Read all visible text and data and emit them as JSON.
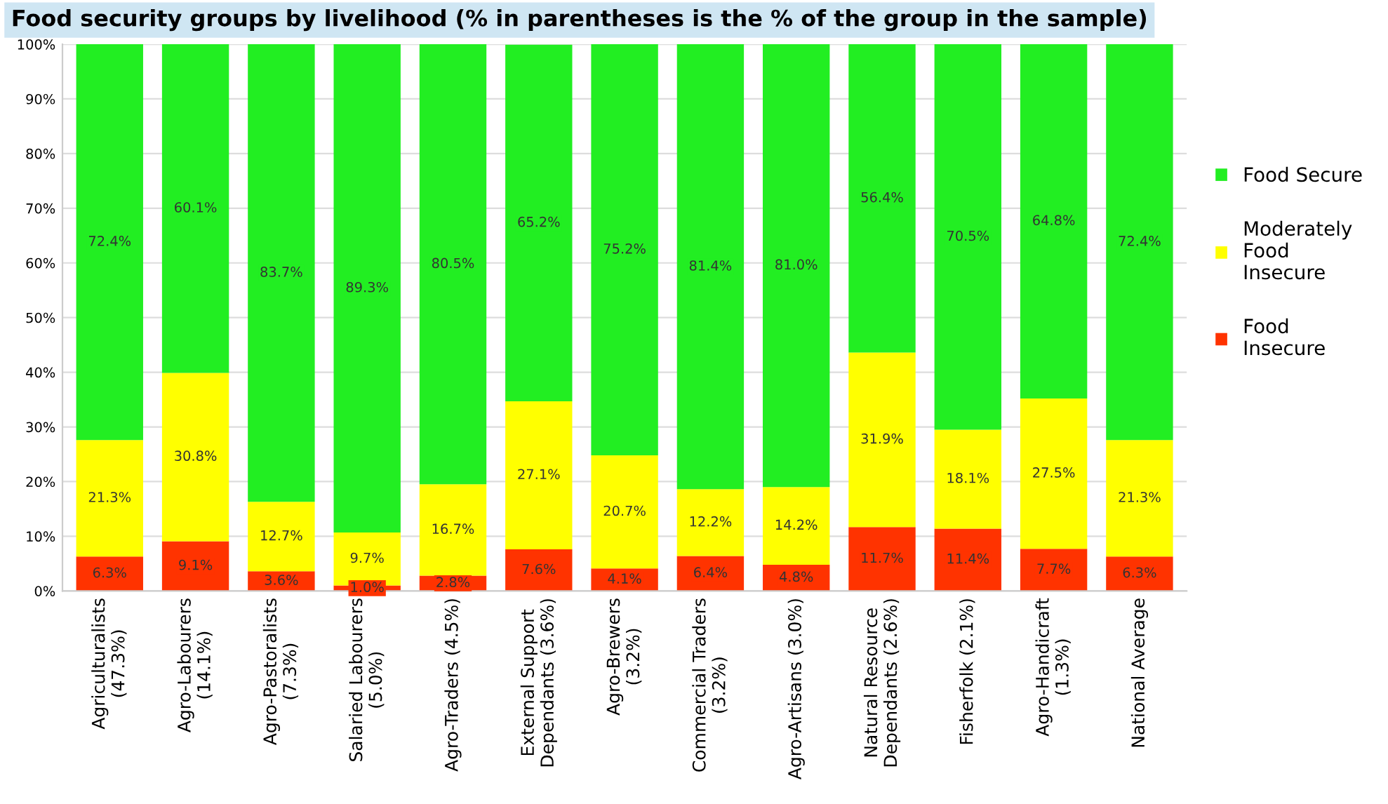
{
  "chart_data": {
    "type": "bar",
    "title": "Food security groups by livelihood (% in parentheses is the % of the group in the sample)",
    "categories": [
      "Agriculturalists\n(47.3%)",
      "Agro-Labourers\n(14.1%)",
      "Agro-Pastoralists\n(7.3%)",
      "Salaried Labourers\n(5.0%)",
      "Agro-Traders (4.5%)",
      "External Support\nDependants (3.6%)",
      "Agro-Brewers\n(3.2%)",
      "Commercial Traders\n(3.2%)",
      "Agro-Artisans (3.0%)",
      "Natural Resource\nDependants (2.6%)",
      "Fisherfolk (2.1%)",
      "Agro-Handicraft\n(1.3%)",
      "National Average"
    ],
    "stacked": true,
    "series": [
      {
        "name": "Food Insecure",
        "color": "#ff3300",
        "values": [
          6.3,
          9.1,
          3.6,
          1.0,
          2.8,
          7.6,
          4.1,
          6.4,
          4.8,
          11.7,
          11.4,
          7.7,
          6.3
        ],
        "value_labels": [
          "6.3%",
          "9.1%",
          "3.6%",
          "1.0%",
          "2.8%",
          "7.6%",
          "4.1%",
          "6.4%",
          "4.8%",
          "11.7%",
          "11.4%",
          "7.7%",
          "6.3%"
        ]
      },
      {
        "name": "Moderately Food Insecure",
        "color": "#ffff00",
        "values": [
          21.3,
          30.8,
          12.7,
          9.7,
          16.7,
          27.1,
          20.7,
          12.2,
          14.2,
          31.9,
          18.1,
          27.5,
          21.3
        ],
        "value_labels": [
          "21.3%",
          "30.8%",
          "12.7%",
          "9.7%",
          "16.7%",
          "27.1%",
          "20.7%",
          "12.2%",
          "14.2%",
          "31.9%",
          "18.1%",
          "27.5%",
          "21.3%"
        ]
      },
      {
        "name": "Food Secure",
        "color": "#22ee22",
        "values": [
          72.4,
          60.1,
          83.7,
          89.3,
          80.5,
          65.2,
          75.2,
          81.4,
          81.0,
          56.4,
          70.5,
          64.8,
          72.4
        ],
        "value_labels": [
          "72.4%",
          "60.1%",
          "83.7%",
          "89.3%",
          "80.5%",
          "65.2%",
          "75.2%",
          "81.4%",
          "81.0%",
          "56.4%",
          "70.5%",
          "64.8%",
          "72.4%"
        ]
      }
    ],
    "ylim": [
      0,
      100
    ],
    "yticks": [
      {
        "value": 0,
        "label": "0%"
      },
      {
        "value": 10,
        "label": "10%"
      },
      {
        "value": 20,
        "label": "20%"
      },
      {
        "value": 30,
        "label": "30%"
      },
      {
        "value": 40,
        "label": "40%"
      },
      {
        "value": 50,
        "label": "50%"
      },
      {
        "value": 60,
        "label": "60%"
      },
      {
        "value": 70,
        "label": "70%"
      },
      {
        "value": 80,
        "label": "80%"
      },
      {
        "value": 90,
        "label": "90%"
      },
      {
        "value": 100,
        "label": "100%"
      }
    ],
    "grid": "y",
    "legend": "right"
  }
}
